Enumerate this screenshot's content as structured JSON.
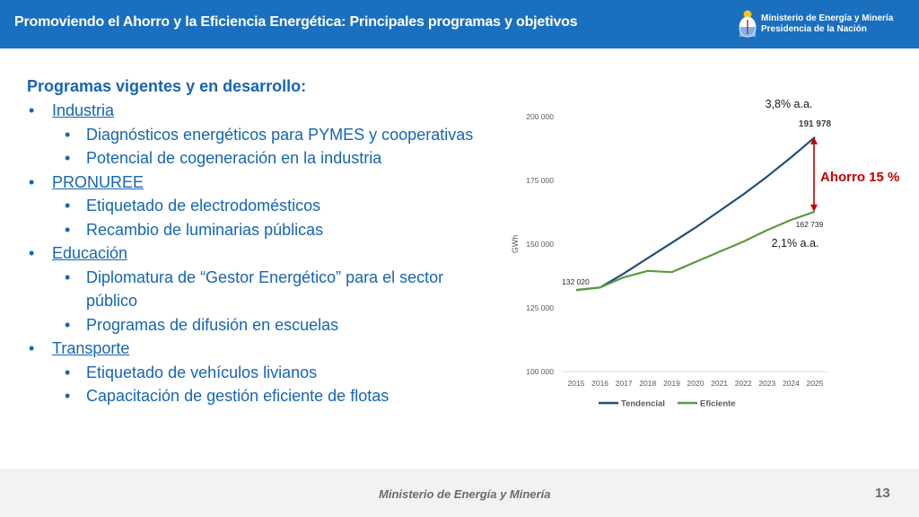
{
  "header": {
    "title": "Promoviendo el Ahorro y la Eficiencia Energética: Principales programas y objetivos",
    "ministry_line1": "Ministerio de Energía y Minería",
    "ministry_line2": "Presidencia de la Nación"
  },
  "content": {
    "heading": "Programas vigentes y en desarrollo:",
    "sections": [
      {
        "title": "Industria",
        "items": [
          "Diagnósticos energéticos para PYMES y cooperativas",
          "Potencial de cogeneración en la industria"
        ]
      },
      {
        "title": "PRONUREE",
        "items": [
          "Etiquetado de electrodomésticos",
          "Recambio de luminarias públicas"
        ]
      },
      {
        "title": "Educación",
        "items": [
          "Diplomatura de “Gestor Energético” para el sector público",
          "Programas de difusión en escuelas"
        ]
      },
      {
        "title": "Transporte",
        "items": [
          "Etiquetado de vehículos livianos",
          "Capacitación de gestión eficiente de flotas"
        ]
      }
    ]
  },
  "chart_data": {
    "type": "line",
    "ylabel": "GWh",
    "ylim": [
      100000,
      200000
    ],
    "yticks": [
      "100 000",
      "125 000",
      "150 000",
      "175 000",
      "200 000"
    ],
    "x": [
      "2015",
      "2016",
      "2017",
      "2018",
      "2019",
      "2020",
      "2021",
      "2022",
      "2023",
      "2024",
      "2025"
    ],
    "series": [
      {
        "name": "Tendencial",
        "color": "#1f4e79",
        "values": [
          132020,
          133000,
          138500,
          144500,
          150500,
          156500,
          163000,
          169500,
          176500,
          184000,
          191978
        ]
      },
      {
        "name": "Eficiente",
        "color": "#5b9a3c",
        "values": [
          132020,
          133000,
          137000,
          139500,
          139000,
          143000,
          147000,
          151000,
          155500,
          159500,
          162739
        ]
      }
    ],
    "annotations": {
      "start_value": "132 020",
      "end_tendencial": "191 978",
      "end_eficiente": "162 739",
      "rate_tendencial": "3,8% a.a.",
      "rate_eficiente": "2,1% a.a.",
      "savings": "Ahorro 15 %"
    },
    "grid": false,
    "legend": "bottom"
  },
  "footer": {
    "text": "Ministerio de Energía y Minería",
    "page": "13"
  }
}
